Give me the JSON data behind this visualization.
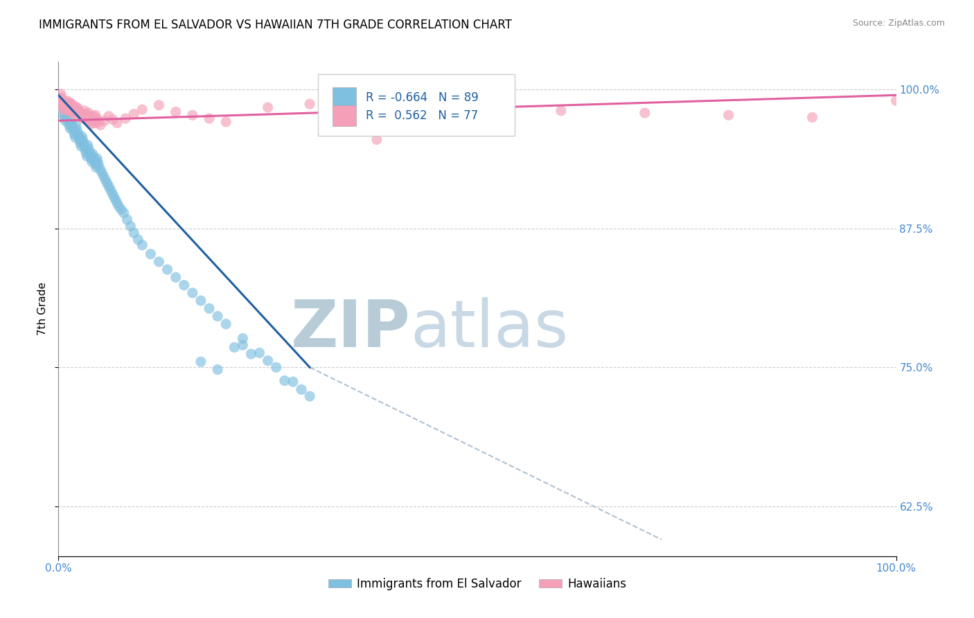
{
  "title": "IMMIGRANTS FROM EL SALVADOR VS HAWAIIAN 7TH GRADE CORRELATION CHART",
  "source_text": "Source: ZipAtlas.com",
  "ylabel": "7th Grade",
  "legend_blue_label": "Immigrants from El Salvador",
  "legend_pink_label": "Hawaiians",
  "R_blue": -0.664,
  "N_blue": 89,
  "R_pink": 0.562,
  "N_pink": 77,
  "blue_color": "#7fbfdf",
  "pink_color": "#f4a0b8",
  "blue_line_color": "#2060a0",
  "pink_line_color": "#e060a0",
  "dashed_line_color": "#b0c0d0",
  "watermark_zip_color": "#c5d5e5",
  "watermark_atlas_color": "#d0dde8",
  "xmin": 0.0,
  "xmax": 1.0,
  "ymin": 0.58,
  "ymax": 1.025,
  "yticks": [
    0.625,
    0.75,
    0.875,
    1.0
  ],
  "ytick_labels": [
    "62.5%",
    "75.0%",
    "87.5%",
    "100.0%"
  ],
  "blue_scatter_x": [
    0.002,
    0.003,
    0.004,
    0.005,
    0.006,
    0.007,
    0.008,
    0.009,
    0.01,
    0.011,
    0.012,
    0.013,
    0.014,
    0.015,
    0.016,
    0.017,
    0.018,
    0.019,
    0.02,
    0.021,
    0.022,
    0.023,
    0.024,
    0.025,
    0.026,
    0.027,
    0.028,
    0.029,
    0.03,
    0.031,
    0.032,
    0.033,
    0.034,
    0.035,
    0.036,
    0.037,
    0.038,
    0.039,
    0.04,
    0.041,
    0.042,
    0.043,
    0.044,
    0.045,
    0.046,
    0.047,
    0.048,
    0.05,
    0.052,
    0.054,
    0.056,
    0.058,
    0.06,
    0.062,
    0.064,
    0.066,
    0.068,
    0.07,
    0.072,
    0.075,
    0.078,
    0.082,
    0.086,
    0.09,
    0.095,
    0.1,
    0.11,
    0.12,
    0.13,
    0.14,
    0.15,
    0.16,
    0.17,
    0.18,
    0.19,
    0.2,
    0.22,
    0.24,
    0.26,
    0.28,
    0.3,
    0.17,
    0.19,
    0.21,
    0.23,
    0.25,
    0.27,
    0.29,
    0.22
  ],
  "blue_scatter_y": [
    0.99,
    0.985,
    0.988,
    0.982,
    0.978,
    0.975,
    0.972,
    0.98,
    0.977,
    0.974,
    0.97,
    0.968,
    0.965,
    0.972,
    0.969,
    0.966,
    0.963,
    0.96,
    0.957,
    0.968,
    0.964,
    0.961,
    0.958,
    0.955,
    0.952,
    0.949,
    0.958,
    0.955,
    0.952,
    0.949,
    0.946,
    0.943,
    0.94,
    0.95,
    0.947,
    0.944,
    0.941,
    0.938,
    0.935,
    0.942,
    0.939,
    0.936,
    0.933,
    0.93,
    0.938,
    0.935,
    0.932,
    0.928,
    0.925,
    0.922,
    0.919,
    0.916,
    0.913,
    0.91,
    0.907,
    0.904,
    0.901,
    0.898,
    0.895,
    0.892,
    0.889,
    0.883,
    0.877,
    0.871,
    0.865,
    0.86,
    0.852,
    0.845,
    0.838,
    0.831,
    0.824,
    0.817,
    0.81,
    0.803,
    0.796,
    0.789,
    0.776,
    0.763,
    0.75,
    0.737,
    0.724,
    0.755,
    0.748,
    0.768,
    0.762,
    0.756,
    0.738,
    0.73,
    0.77
  ],
  "pink_scatter_x": [
    0.002,
    0.003,
    0.004,
    0.005,
    0.006,
    0.007,
    0.008,
    0.009,
    0.01,
    0.011,
    0.012,
    0.013,
    0.014,
    0.015,
    0.016,
    0.017,
    0.018,
    0.019,
    0.02,
    0.022,
    0.024,
    0.026,
    0.028,
    0.03,
    0.032,
    0.034,
    0.036,
    0.038,
    0.04,
    0.042,
    0.044,
    0.046,
    0.048,
    0.05,
    0.055,
    0.06,
    0.065,
    0.07,
    0.08,
    0.09,
    0.1,
    0.12,
    0.14,
    0.16,
    0.18,
    0.2,
    0.25,
    0.3,
    0.4,
    0.5,
    0.6,
    0.7,
    0.8,
    0.9,
    1.0,
    0.003,
    0.005,
    0.007,
    0.009,
    0.011,
    0.013,
    0.015,
    0.017,
    0.019,
    0.021,
    0.023,
    0.025,
    0.027,
    0.029,
    0.031,
    0.033,
    0.035,
    0.037,
    0.039,
    0.041,
    0.043,
    0.045
  ],
  "pink_scatter_y": [
    0.992,
    0.996,
    0.988,
    0.985,
    0.982,
    0.989,
    0.986,
    0.983,
    0.99,
    0.987,
    0.984,
    0.981,
    0.988,
    0.985,
    0.982,
    0.979,
    0.986,
    0.983,
    0.98,
    0.984,
    0.981,
    0.978,
    0.975,
    0.978,
    0.975,
    0.972,
    0.979,
    0.976,
    0.973,
    0.97,
    0.977,
    0.974,
    0.971,
    0.968,
    0.972,
    0.976,
    0.973,
    0.97,
    0.974,
    0.978,
    0.982,
    0.986,
    0.98,
    0.977,
    0.974,
    0.971,
    0.984,
    0.987,
    0.985,
    0.983,
    0.981,
    0.979,
    0.977,
    0.975,
    0.99,
    0.993,
    0.99,
    0.987,
    0.984,
    0.981,
    0.988,
    0.985,
    0.982,
    0.979,
    0.976,
    0.983,
    0.98,
    0.977,
    0.974,
    0.981,
    0.978,
    0.975,
    0.972,
    0.969,
    0.976,
    0.973,
    0.97
  ],
  "pink_outlier_x": [
    0.38
  ],
  "pink_outlier_y": [
    0.955
  ],
  "blue_line_x": [
    0.0,
    0.3
  ],
  "blue_line_y": [
    0.995,
    0.75
  ],
  "pink_line_x": [
    0.0,
    1.0
  ],
  "pink_line_y": [
    0.972,
    0.995
  ],
  "dash_line_x": [
    0.3,
    0.72
  ],
  "dash_line_y": [
    0.75,
    0.595
  ],
  "title_fontsize": 12,
  "axis_label_fontsize": 11,
  "tick_fontsize": 11,
  "right_tick_color": "#4488cc"
}
